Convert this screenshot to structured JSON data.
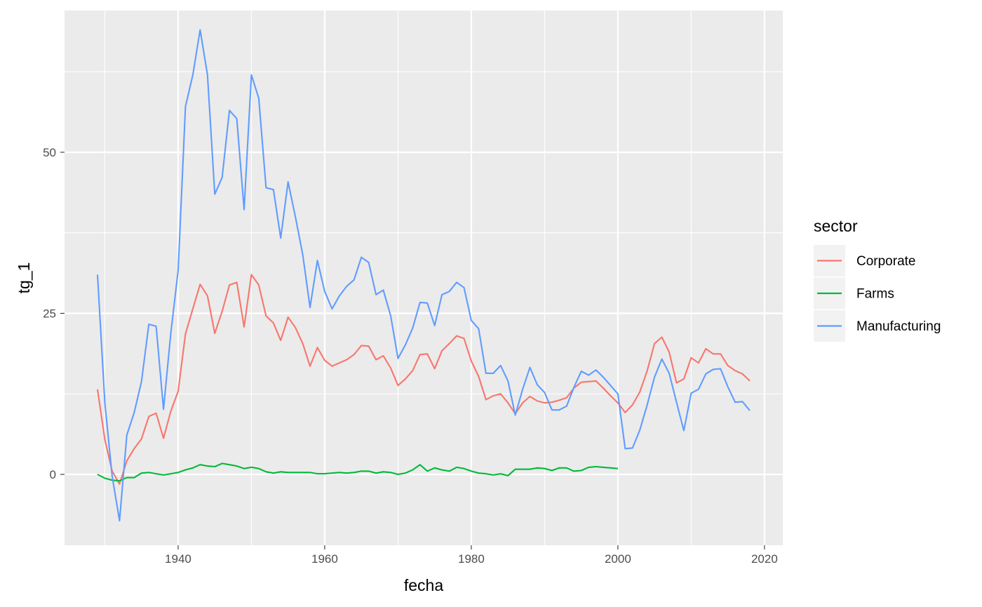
{
  "chart_data": {
    "type": "line",
    "xlabel": "fecha",
    "ylabel": "tg_1",
    "xlim": [
      1924.5,
      2022.5
    ],
    "ylim": [
      -11,
      72
    ],
    "x_ticks": [
      1940,
      1960,
      1980,
      2000,
      2020
    ],
    "y_ticks": [
      0,
      25,
      50
    ],
    "grid": true,
    "legend": {
      "title": "sector",
      "placement": "right"
    },
    "series": [
      {
        "name": "Corporate",
        "color": "#F8766D",
        "x": [
          1929,
          1930,
          1931,
          1932,
          1933,
          1934,
          1935,
          1936,
          1937,
          1938,
          1939,
          1940,
          1941,
          1942,
          1943,
          1944,
          1945,
          1946,
          1947,
          1948,
          1949,
          1950,
          1951,
          1952,
          1953,
          1954,
          1955,
          1956,
          1957,
          1958,
          1959,
          1960,
          1961,
          1962,
          1963,
          1964,
          1965,
          1966,
          1967,
          1968,
          1969,
          1970,
          1971,
          1972,
          1973,
          1974,
          1975,
          1976,
          1977,
          1978,
          1979,
          1980,
          1981,
          1982,
          1983,
          1984,
          1985,
          1986,
          1987,
          1988,
          1989,
          1990,
          1991,
          1992,
          1993,
          1994,
          1995,
          1996,
          1997,
          1998,
          1999,
          2000,
          2001,
          2002,
          2003,
          2004,
          2005,
          2006,
          2007,
          2008,
          2009,
          2010,
          2011,
          2012,
          2013,
          2014,
          2015,
          2016,
          2017,
          2018
        ],
        "values": [
          13.2,
          5.4,
          0.5,
          -1.5,
          2.1,
          4.0,
          5.5,
          9.0,
          9.5,
          5.6,
          9.8,
          12.9,
          21.8,
          25.7,
          29.5,
          27.7,
          21.9,
          25.3,
          29.4,
          29.8,
          22.9,
          31.0,
          29.4,
          24.6,
          23.5,
          20.8,
          24.4,
          22.8,
          20.3,
          16.8,
          19.7,
          17.7,
          16.8,
          17.3,
          17.8,
          18.6,
          20.0,
          19.9,
          17.8,
          18.4,
          16.5,
          13.8,
          14.8,
          16.1,
          18.6,
          18.7,
          16.4,
          19.2,
          20.3,
          21.5,
          21.1,
          17.6,
          15.2,
          11.6,
          12.2,
          12.5,
          11.1,
          9.4,
          11.1,
          12.1,
          11.4,
          11.1,
          11.2,
          11.5,
          11.9,
          13.4,
          14.3,
          14.4,
          14.5,
          13.4,
          12.2,
          11.1,
          9.6,
          10.8,
          12.8,
          16.1,
          20.3,
          21.3,
          19.0,
          14.2,
          14.8,
          18.1,
          17.3,
          19.5,
          18.7,
          18.7,
          16.9,
          16.1,
          15.6,
          14.5
        ]
      },
      {
        "name": "Farms",
        "color": "#00BA38",
        "x": [
          1929,
          1930,
          1931,
          1932,
          1933,
          1934,
          1935,
          1936,
          1937,
          1938,
          1939,
          1940,
          1941,
          1942,
          1943,
          1944,
          1945,
          1946,
          1947,
          1948,
          1949,
          1950,
          1951,
          1952,
          1953,
          1954,
          1955,
          1956,
          1957,
          1958,
          1959,
          1960,
          1961,
          1962,
          1963,
          1964,
          1965,
          1966,
          1967,
          1968,
          1969,
          1970,
          1971,
          1972,
          1973,
          1974,
          1975,
          1976,
          1977,
          1978,
          1979,
          1980,
          1981,
          1982,
          1983,
          1984,
          1985,
          1986,
          1987,
          1988,
          1989,
          1990,
          1991,
          1992,
          1993,
          1994,
          1995,
          1996,
          1997,
          1998,
          1999,
          2000
        ],
        "values": [
          0.0,
          -0.6,
          -0.9,
          -1.0,
          -0.5,
          -0.5,
          0.2,
          0.3,
          0.1,
          -0.1,
          0.1,
          0.3,
          0.7,
          1.0,
          1.5,
          1.3,
          1.2,
          1.7,
          1.5,
          1.3,
          0.9,
          1.1,
          0.9,
          0.4,
          0.2,
          0.4,
          0.3,
          0.3,
          0.3,
          0.3,
          0.1,
          0.1,
          0.2,
          0.3,
          0.2,
          0.3,
          0.5,
          0.5,
          0.2,
          0.4,
          0.3,
          0.0,
          0.2,
          0.7,
          1.5,
          0.5,
          1.0,
          0.7,
          0.5,
          1.1,
          0.9,
          0.5,
          0.2,
          0.1,
          -0.1,
          0.1,
          -0.2,
          0.8,
          0.8,
          0.8,
          1.0,
          0.9,
          0.6,
          1.0,
          1.0,
          0.5,
          0.6,
          1.1,
          1.2,
          1.1,
          1.0,
          0.9
        ]
      },
      {
        "name": "Manufacturing",
        "color": "#619CFF",
        "x": [
          1929,
          1930,
          1931,
          1932,
          1933,
          1934,
          1935,
          1936,
          1937,
          1938,
          1939,
          1940,
          1941,
          1942,
          1943,
          1944,
          1945,
          1946,
          1947,
          1948,
          1949,
          1950,
          1951,
          1952,
          1953,
          1954,
          1955,
          1956,
          1957,
          1958,
          1959,
          1960,
          1961,
          1962,
          1963,
          1964,
          1965,
          1966,
          1967,
          1968,
          1969,
          1970,
          1971,
          1972,
          1973,
          1974,
          1975,
          1976,
          1977,
          1978,
          1979,
          1980,
          1981,
          1982,
          1983,
          1984,
          1985,
          1986,
          1987,
          1988,
          1989,
          1990,
          1991,
          1992,
          1993,
          1994,
          1995,
          1996,
          1997,
          1998,
          1999,
          2000,
          2001,
          2002,
          2003,
          2004,
          2005,
          2006,
          2007,
          2008,
          2009,
          2010,
          2011,
          2012,
          2013,
          2014,
          2015,
          2016,
          2017,
          2018
        ],
        "values": [
          31.0,
          11.1,
          -0.3,
          -7.2,
          6.1,
          9.6,
          14.4,
          23.3,
          23.0,
          10.1,
          21.9,
          31.7,
          57.1,
          62.0,
          69.0,
          62.0,
          43.5,
          46.1,
          56.5,
          55.2,
          41.1,
          62.0,
          58.4,
          44.5,
          44.2,
          36.7,
          45.4,
          40.0,
          34.1,
          25.9,
          33.2,
          28.4,
          25.7,
          27.7,
          29.2,
          30.2,
          33.7,
          32.9,
          27.9,
          28.6,
          24.6,
          18.0,
          20.1,
          22.7,
          26.7,
          26.6,
          23.1,
          27.9,
          28.4,
          29.8,
          29.0,
          23.9,
          22.6,
          15.7,
          15.7,
          16.9,
          14.5,
          9.2,
          13.2,
          16.6,
          13.9,
          12.7,
          10.0,
          10.0,
          10.6,
          13.5,
          16.0,
          15.4,
          16.2,
          15.1,
          13.8,
          12.5,
          4.0,
          4.1,
          6.9,
          10.8,
          15.1,
          17.9,
          15.7,
          11.2,
          6.8,
          12.6,
          13.2,
          15.6,
          16.3,
          16.4,
          13.6,
          11.2,
          11.3,
          9.9
        ]
      }
    ]
  }
}
